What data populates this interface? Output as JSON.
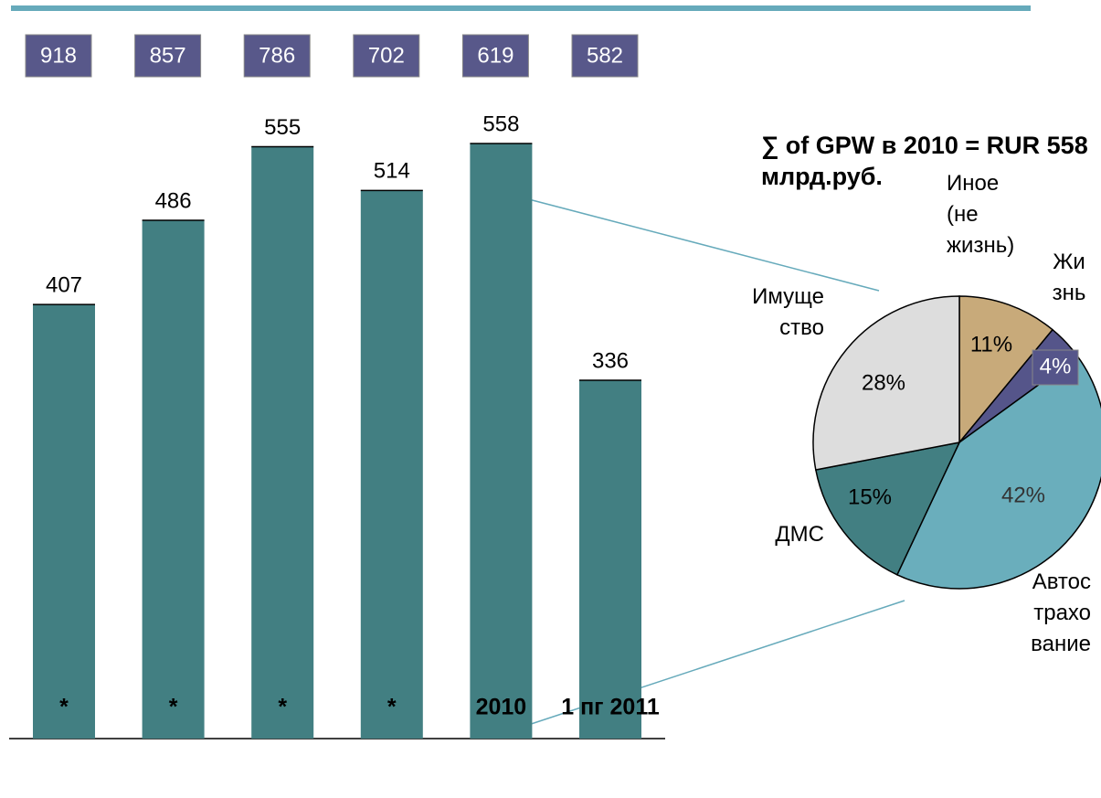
{
  "chart_data": [
    {
      "type": "bar",
      "categories": [
        "*",
        "*",
        "*",
        "*",
        "2010",
        "1 пг 2011"
      ],
      "values": [
        407,
        486,
        555,
        514,
        558,
        336
      ],
      "totals": [
        918,
        857,
        786,
        702,
        619,
        582
      ],
      "color": "#427f82",
      "total_color": "#58588a",
      "ylim": [
        0,
        600
      ]
    },
    {
      "type": "pie",
      "title": "∑ of GPW в 2010 = RUR 558 млрд.руб.",
      "categories": [
        "Иное (не жизнь)",
        "Жизнь",
        "Автострахование",
        "ДМС",
        "Имущество"
      ],
      "values": [
        11,
        4,
        42,
        15,
        28
      ],
      "value_labels": [
        "11%",
        "4%",
        "42%",
        "15%",
        "28%"
      ],
      "colors": [
        "#c8aa7a",
        "#55558a",
        "#6aaebc",
        "#427f82",
        "#dddddd"
      ]
    }
  ]
}
